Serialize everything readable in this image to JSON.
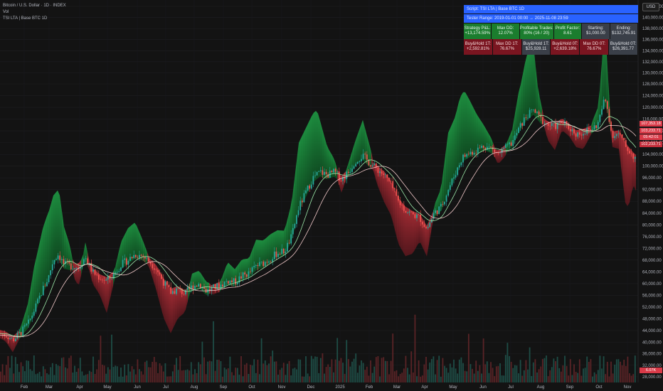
{
  "header": {
    "symbol_line": "Bitcoin / U.S. Dollar · 1D · INDEX",
    "vol_label": "Vol",
    "indicator_line": "TSI LTA | Base BTC 1D"
  },
  "currency_button": "USD",
  "stats_panel": {
    "script": "Script: TSI LTA | Base BTC 1D",
    "range": "Tester Range: 2019-01-01 00:00 → 2025-11-08 23:59",
    "row1": [
      {
        "label": "Strategy P&L:",
        "value": "+13,174.59%",
        "style": "g"
      },
      {
        "label": "Max DD:",
        "value": "12.07%",
        "style": "g"
      },
      {
        "label": "Profitable Trades:",
        "value": "80% (16 / 20)",
        "style": "g"
      },
      {
        "label": "Profit Factor:",
        "value": "8.61",
        "style": "g"
      },
      {
        "label": "Starting:",
        "value": "$1,000.00",
        "style": "k"
      },
      {
        "label": "Ending:",
        "value": "$132,745.91",
        "style": "k"
      }
    ],
    "row2": [
      {
        "label": "Buy&Hold 1T:",
        "value": "+2,592.81%",
        "style": "r"
      },
      {
        "label": "Max DD 1T:",
        "value": "76.67%",
        "style": "r"
      },
      {
        "label": "Buy&Hold 1T:",
        "value": "$25,928.11",
        "style": "k"
      },
      {
        "label": "Buy&Hold 0T:",
        "value": "+2,639.18%",
        "style": "r"
      },
      {
        "label": "Max DD 0T:",
        "value": "76.67%",
        "style": "r"
      },
      {
        "label": "Buy&Hold 0T:",
        "value": "$26,391.77",
        "style": "k"
      }
    ]
  },
  "price_tags": [
    {
      "text": "107,353.18",
      "color": "#d93a48"
    },
    {
      "text": "103,233.71",
      "color": "#d93a48"
    },
    {
      "text": "05:42:01",
      "color": "#d93a48"
    },
    {
      "text": "102,233.71",
      "color": "#c42d3a"
    }
  ],
  "volume_tag": {
    "text": "6.07K",
    "color": "#d93a48"
  },
  "chart_data": {
    "type": "candlestick",
    "y_axis_ticks": [
      "142,000.00",
      "140,000.00",
      "138,000.00",
      "136,000.00",
      "134,000.00",
      "132,000.00",
      "130,000.00",
      "128,000.00",
      "124,000.00",
      "120,000.00",
      "116,000.00",
      "112,000.00",
      "108,000.00",
      "104,000.00",
      "100,000.00",
      "96,000.00",
      "92,000.00",
      "88,000.00",
      "84,000.00",
      "80,000.00",
      "76,000.00",
      "72,000.00",
      "68,000.00",
      "64,000.00",
      "60,000.00",
      "56,000.00",
      "52,000.00",
      "48,000.00",
      "44,000.00",
      "40,000.00",
      "36,000.00",
      "32,000.00",
      "28,000.00"
    ],
    "x_axis_ticks": [
      "Feb",
      "Mar",
      "Apr",
      "May",
      "Jun",
      "Jul",
      "Aug",
      "Sep",
      "Oct",
      "Nov",
      "Dec",
      "2025",
      "Feb",
      "Mar",
      "Apr",
      "May",
      "Jun",
      "Jul",
      "Aug",
      "Sep",
      "Oct",
      "Nov"
    ],
    "price_path": [
      [
        0,
        43000
      ],
      [
        8,
        42500
      ],
      [
        18,
        40800
      ],
      [
        30,
        43500
      ],
      [
        40,
        46500
      ],
      [
        50,
        52000
      ],
      [
        60,
        58000
      ],
      [
        68,
        62000
      ],
      [
        75,
        68000
      ],
      [
        82,
        70000
      ],
      [
        90,
        66500
      ],
      [
        100,
        66000
      ],
      [
        110,
        65500
      ],
      [
        120,
        69000
      ],
      [
        130,
        64000
      ],
      [
        140,
        62000
      ],
      [
        150,
        61000
      ],
      [
        160,
        63000
      ],
      [
        170,
        66500
      ],
      [
        180,
        68000
      ],
      [
        190,
        70000
      ],
      [
        200,
        69500
      ],
      [
        210,
        67500
      ],
      [
        220,
        65000
      ],
      [
        230,
        60500
      ],
      [
        240,
        57000
      ],
      [
        250,
        58000
      ],
      [
        260,
        56500
      ],
      [
        270,
        59000
      ],
      [
        280,
        60000
      ],
      [
        290,
        57500
      ],
      [
        300,
        58500
      ],
      [
        310,
        59500
      ],
      [
        320,
        61000
      ],
      [
        330,
        60500
      ],
      [
        340,
        62500
      ],
      [
        350,
        63500
      ],
      [
        360,
        66000
      ],
      [
        370,
        67000
      ],
      [
        380,
        68500
      ],
      [
        390,
        70500
      ],
      [
        400,
        71000
      ],
      [
        410,
        76000
      ],
      [
        420,
        86000
      ],
      [
        430,
        91000
      ],
      [
        440,
        96000
      ],
      [
        450,
        98000
      ],
      [
        460,
        97000
      ],
      [
        470,
        98000
      ],
      [
        480,
        95500
      ],
      [
        490,
        98000
      ],
      [
        500,
        102000
      ],
      [
        510,
        103500
      ],
      [
        520,
        101000
      ],
      [
        530,
        99000
      ],
      [
        540,
        97000
      ],
      [
        550,
        93500
      ],
      [
        560,
        88000
      ],
      [
        570,
        85000
      ],
      [
        580,
        83500
      ],
      [
        590,
        82500
      ],
      [
        600,
        78500
      ],
      [
        610,
        84000
      ],
      [
        620,
        86000
      ],
      [
        630,
        92000
      ],
      [
        640,
        97500
      ],
      [
        650,
        103000
      ],
      [
        660,
        104500
      ],
      [
        670,
        105500
      ],
      [
        680,
        107000
      ],
      [
        690,
        106000
      ],
      [
        700,
        104000
      ],
      [
        710,
        106000
      ],
      [
        720,
        108000
      ],
      [
        730,
        113000
      ],
      [
        740,
        117000
      ],
      [
        750,
        119000
      ],
      [
        760,
        116000
      ],
      [
        770,
        114000
      ],
      [
        780,
        113500
      ],
      [
        790,
        115000
      ],
      [
        800,
        113000
      ],
      [
        810,
        111000
      ],
      [
        820,
        111500
      ],
      [
        830,
        112500
      ],
      [
        840,
        114000
      ],
      [
        850,
        123000
      ],
      [
        855,
        118500
      ],
      [
        860,
        110500
      ],
      [
        870,
        111000
      ],
      [
        880,
        106500
      ],
      [
        890,
        103500
      ],
      [
        896,
        102200
      ]
    ]
  }
}
